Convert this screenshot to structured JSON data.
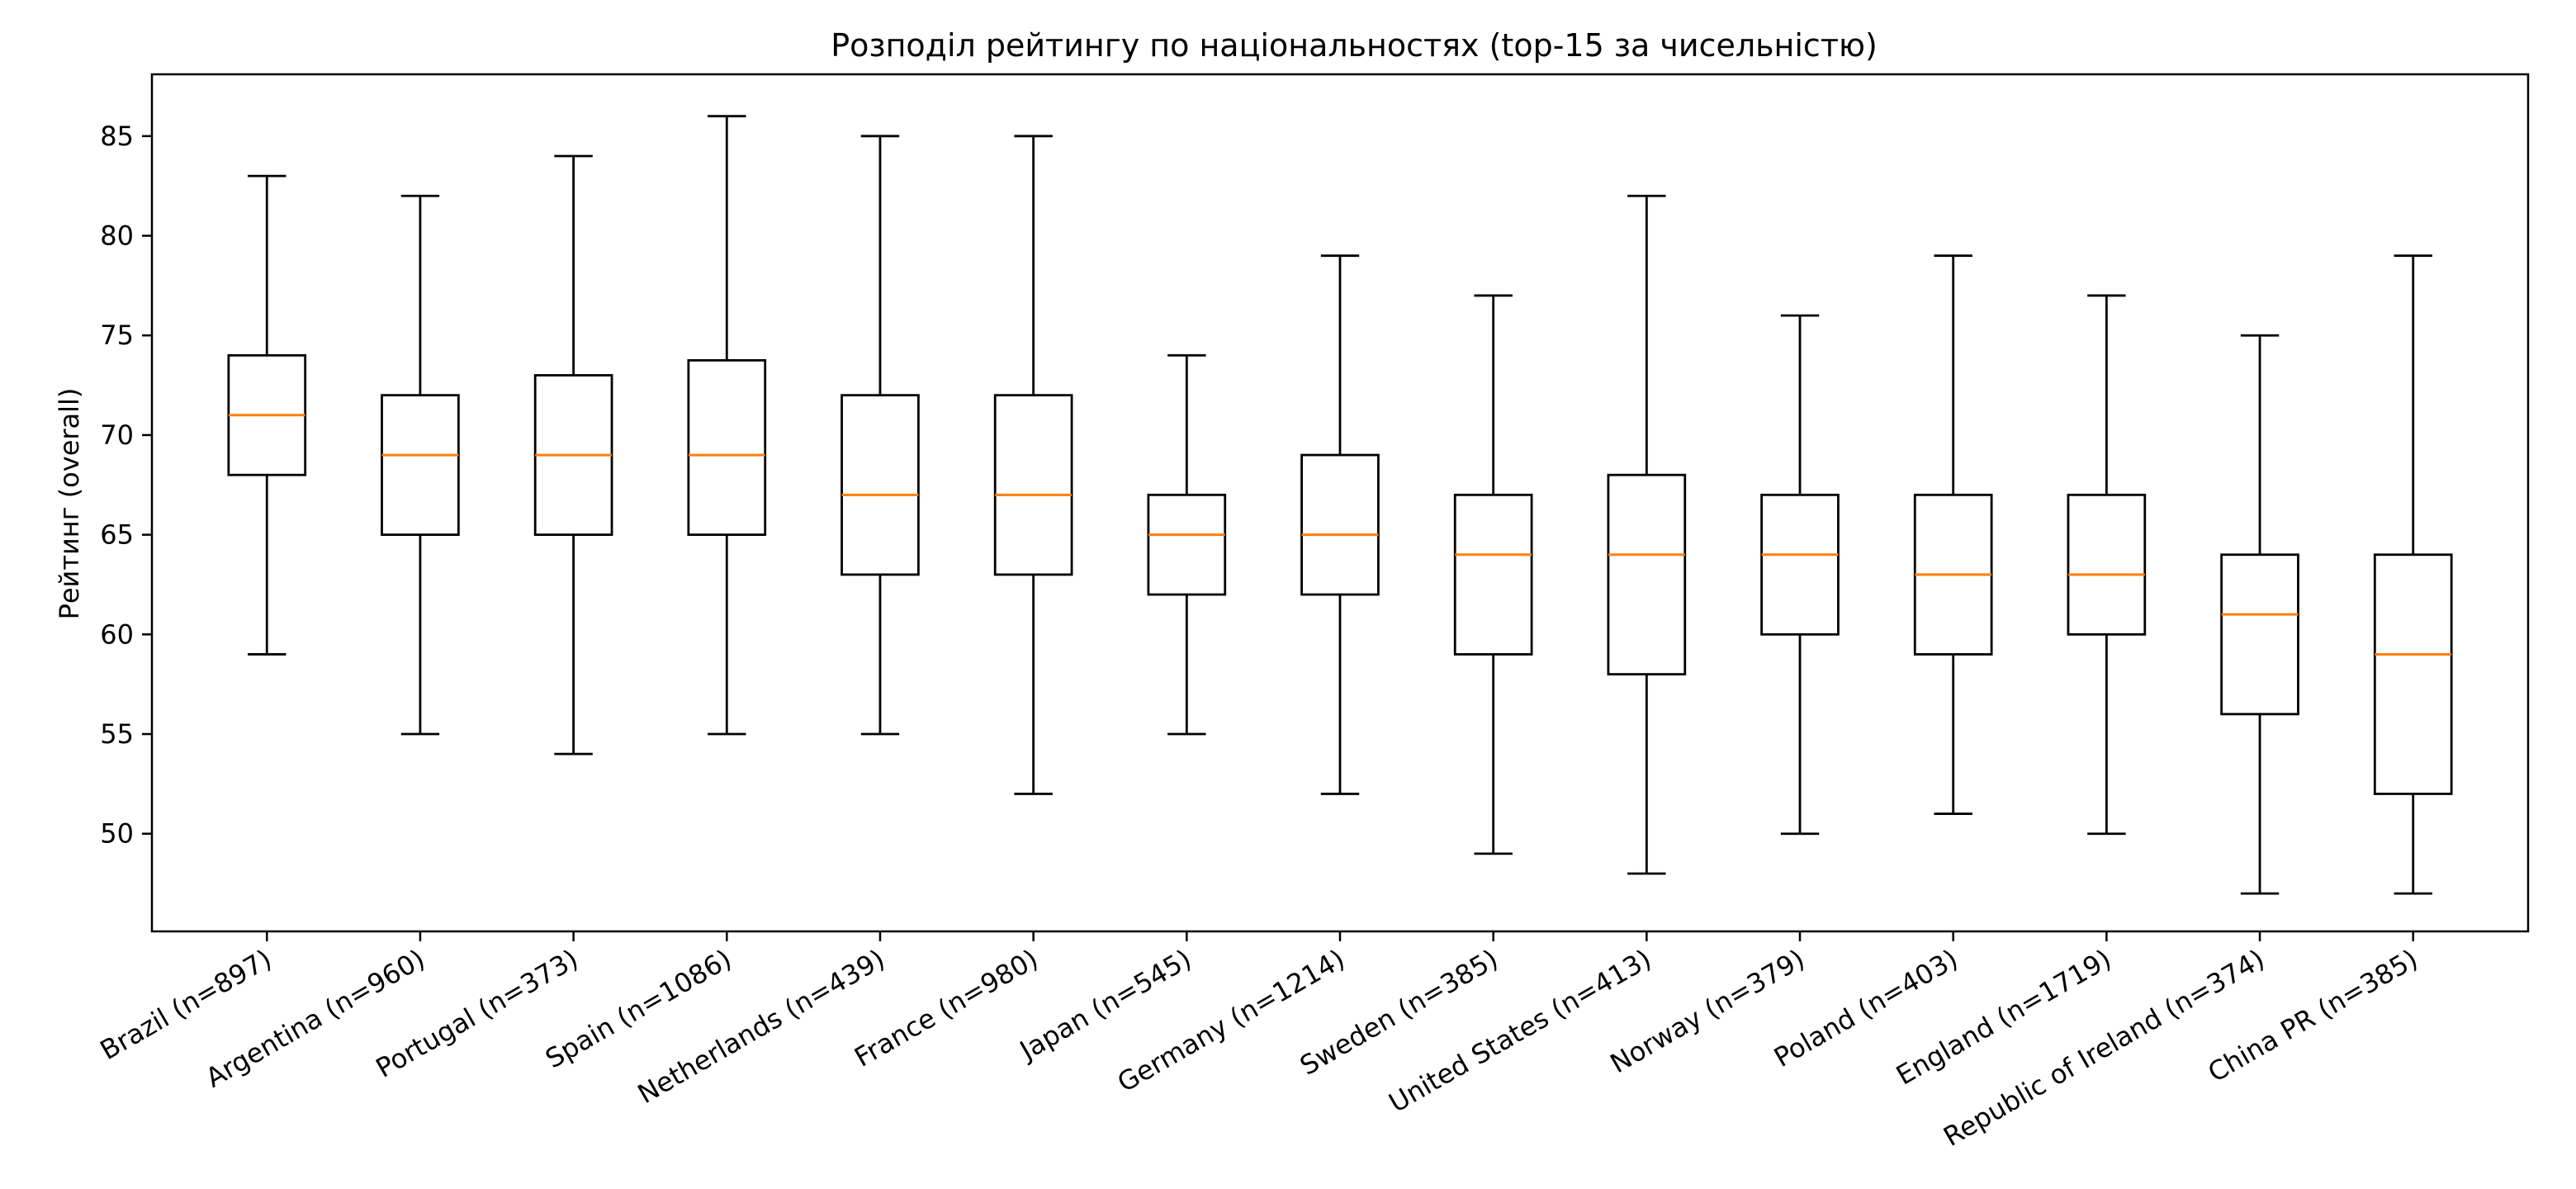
{
  "chart_data": {
    "type": "box",
    "title": "Розподіл рейтингу по національностях (top-15 за чисельністю)",
    "xlabel": "",
    "ylabel": "Рейтинг (overall)",
    "ylim": [
      45.1,
      88.1
    ],
    "yticks": [
      50,
      55,
      60,
      65,
      70,
      75,
      80,
      85
    ],
    "grid": false,
    "median_color": "#ff7f0e",
    "box_color": "#000000",
    "categories": [
      "Brazil (n=897)",
      "Argentina (n=960)",
      "Portugal (n=373)",
      "Spain (n=1086)",
      "Netherlands (n=439)",
      "France (n=980)",
      "Japan (n=545)",
      "Germany (n=1214)",
      "Sweden (n=385)",
      "United States (n=413)",
      "Norway (n=379)",
      "Poland (n=403)",
      "England (n=1719)",
      "Republic of Ireland (n=374)",
      "China PR (n=385)"
    ],
    "boxes": [
      {
        "whislo": 59,
        "q1": 68,
        "med": 71,
        "q3": 74,
        "whishi": 83
      },
      {
        "whislo": 55,
        "q1": 65,
        "med": 69,
        "q3": 72,
        "whishi": 82
      },
      {
        "whislo": 54,
        "q1": 65,
        "med": 69,
        "q3": 73,
        "whishi": 84
      },
      {
        "whislo": 55,
        "q1": 65,
        "med": 69,
        "q3": 73.75,
        "whishi": 86
      },
      {
        "whislo": 55,
        "q1": 63,
        "med": 67,
        "q3": 72,
        "whishi": 85
      },
      {
        "whislo": 52,
        "q1": 63,
        "med": 67,
        "q3": 72,
        "whishi": 85
      },
      {
        "whislo": 55,
        "q1": 62,
        "med": 65,
        "q3": 67,
        "whishi": 74
      },
      {
        "whislo": 52,
        "q1": 62,
        "med": 65,
        "q3": 69,
        "whishi": 79
      },
      {
        "whislo": 49,
        "q1": 59,
        "med": 64,
        "q3": 67,
        "whishi": 77
      },
      {
        "whislo": 48,
        "q1": 58,
        "med": 64,
        "q3": 68,
        "whishi": 82
      },
      {
        "whislo": 50,
        "q1": 60,
        "med": 64,
        "q3": 67,
        "whishi": 76
      },
      {
        "whislo": 51,
        "q1": 59,
        "med": 63,
        "q3": 67,
        "whishi": 79
      },
      {
        "whislo": 50,
        "q1": 60,
        "med": 63,
        "q3": 67,
        "whishi": 77
      },
      {
        "whislo": 47,
        "q1": 56,
        "med": 61,
        "q3": 64,
        "whishi": 75
      },
      {
        "whislo": 47,
        "q1": 52,
        "med": 59,
        "q3": 64,
        "whishi": 79
      }
    ]
  }
}
